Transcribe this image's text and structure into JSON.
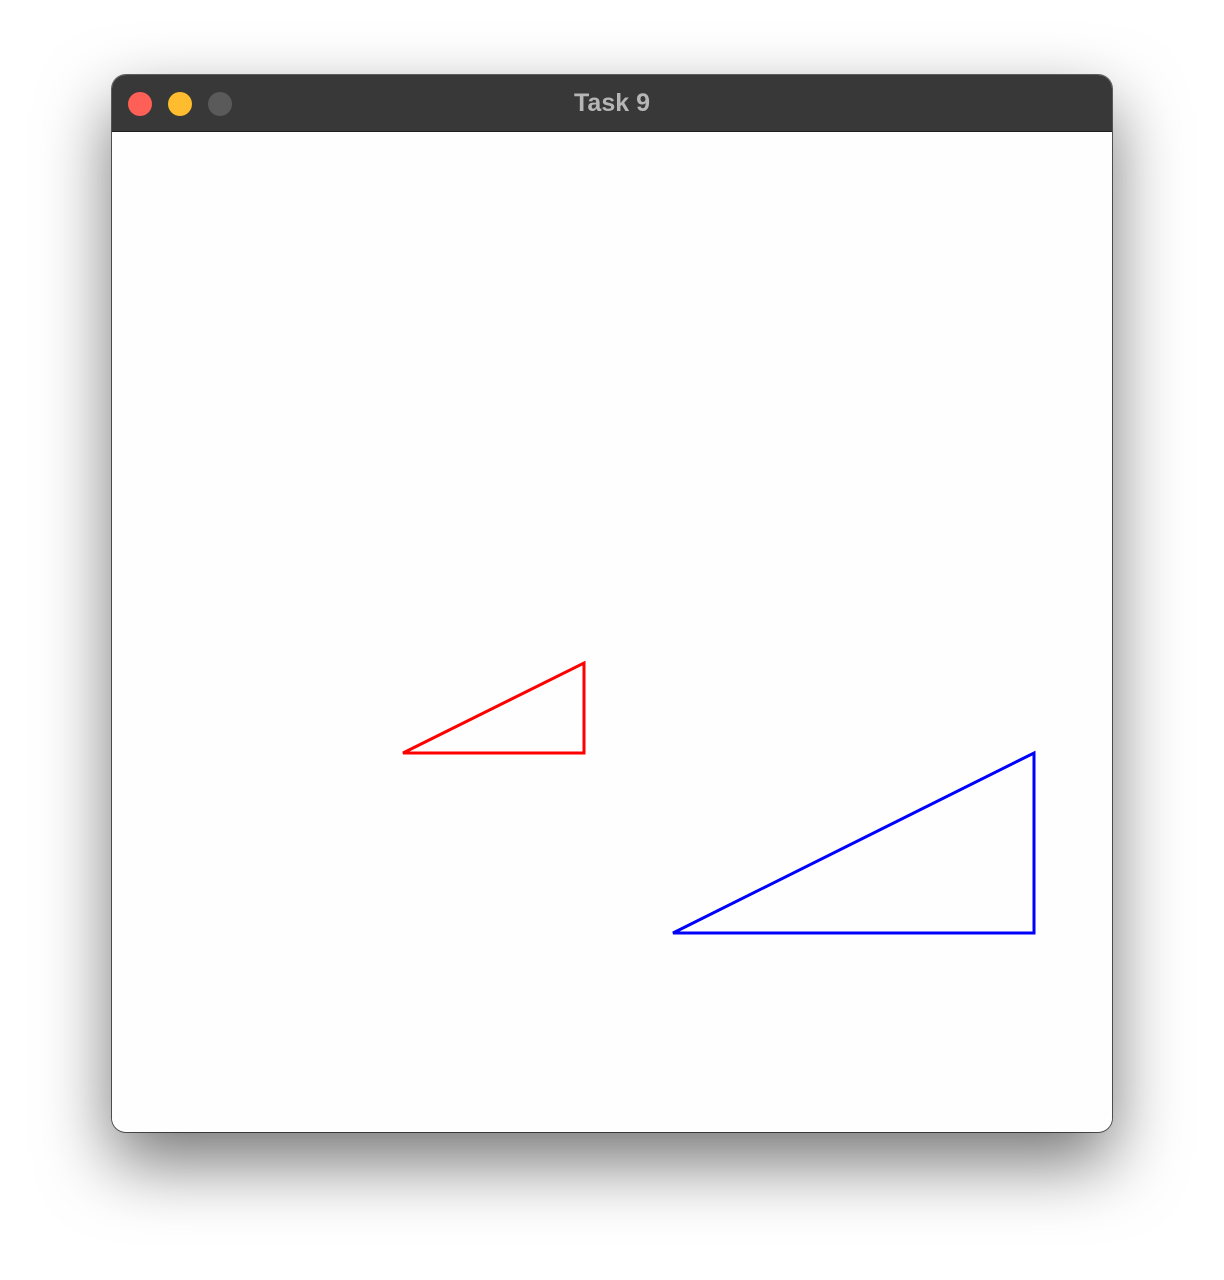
{
  "window": {
    "title": "Task 9"
  },
  "colors": {
    "titlebar": "#383838",
    "title_text": "#b6b6b6",
    "close": "#fe5f57",
    "minimize": "#febc2e",
    "zoom_disabled": "#5a5a5a",
    "canvas": "#fefefe"
  },
  "shapes": [
    {
      "name": "red-triangle",
      "color": "#ff0000"
    },
    {
      "name": "blue-triangle",
      "color": "#0000ff"
    }
  ]
}
